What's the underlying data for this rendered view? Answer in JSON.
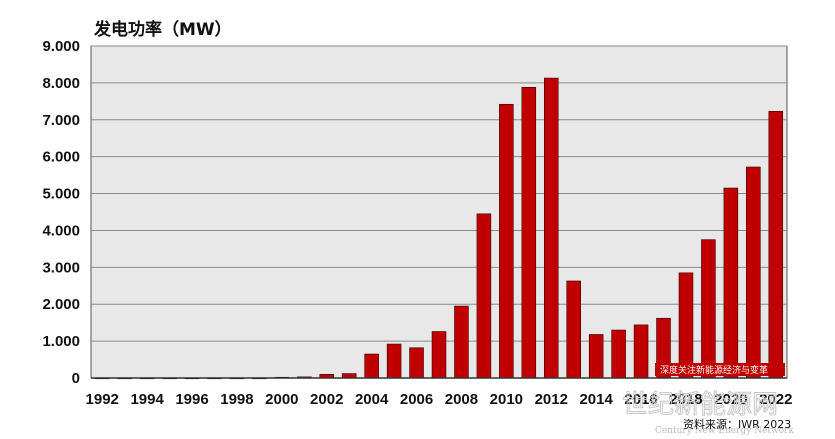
{
  "chart_data": {
    "type": "bar",
    "title": "发电功率（MW）",
    "categories": [
      "1992",
      "1993",
      "1994",
      "1995",
      "1996",
      "1997",
      "1998",
      "1999",
      "2000",
      "2001",
      "2002",
      "2003",
      "2004",
      "2005",
      "2006",
      "2007",
      "2008",
      "2009",
      "2010",
      "2011",
      "2012",
      "2013",
      "2014",
      "2015",
      "2016",
      "2017",
      "2018",
      "2019",
      "2020",
      "2021",
      "2022"
    ],
    "x_tick_labels": [
      "1992",
      "1994",
      "1996",
      "1998",
      "2000",
      "2002",
      "2004",
      "2006",
      "2008",
      "2010",
      "2012",
      "2014",
      "2016",
      "2018",
      "2020",
      "2022"
    ],
    "values": [
      0,
      0,
      0,
      0,
      0,
      0,
      0,
      0,
      20,
      30,
      100,
      120,
      650,
      920,
      820,
      1260,
      1950,
      4450,
      7420,
      7880,
      8130,
      2630,
      1180,
      1300,
      1440,
      1620,
      2850,
      3750,
      5150,
      5720,
      7230
    ],
    "ylim": [
      0,
      9000
    ],
    "y_tick_labels": [
      "0",
      "1.000",
      "2.000",
      "3.000",
      "4.000",
      "5.000",
      "6.000",
      "7.000",
      "8.000",
      "9.000"
    ],
    "bar_color": "#c00000",
    "plot_background": "#e8e8e8",
    "grid": true,
    "source_note": "资料来源：IWR 2023"
  },
  "overlay": {
    "banner_text": "深度关注新能源经济与变革",
    "banner_color": "#c00000",
    "watermark_text": "世纪新能源网",
    "watermark_sub": "Century New Energy Network"
  }
}
